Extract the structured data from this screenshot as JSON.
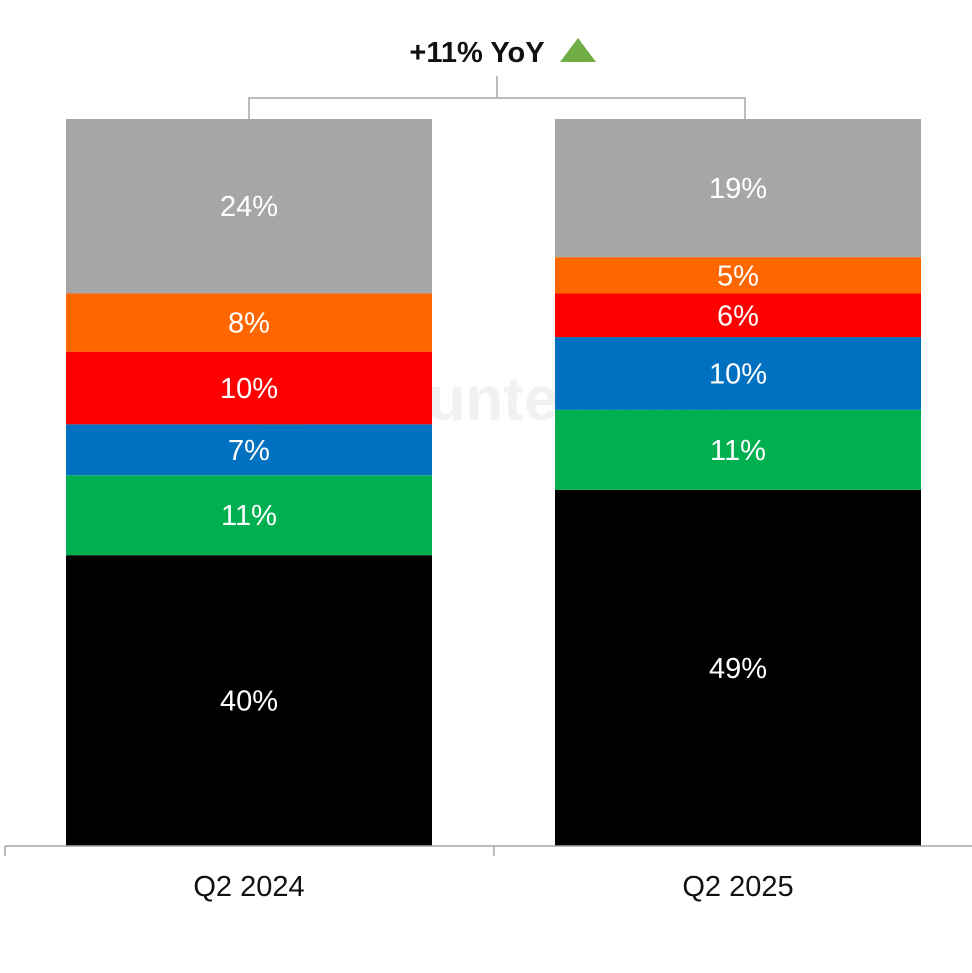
{
  "chart_data": {
    "type": "bar",
    "stacked": true,
    "normalized_percent": true,
    "categories": [
      "Q2 2024",
      "Q2 2025"
    ],
    "stack_order_bottom_to_top": [
      "black",
      "green",
      "blue",
      "red",
      "orange",
      "gray"
    ],
    "series": [
      {
        "color": "#000000",
        "values": [
          40,
          49
        ],
        "labels": [
          "40%",
          "49%"
        ]
      },
      {
        "color": "#00b050",
        "values": [
          11,
          11
        ],
        "labels": [
          "11%",
          "11%"
        ]
      },
      {
        "color": "#0070c0",
        "values": [
          7,
          10
        ],
        "labels": [
          "7%",
          "10%"
        ]
      },
      {
        "color": "#ff0000",
        "values": [
          10,
          6
        ],
        "labels": [
          "10%",
          "6%"
        ]
      },
      {
        "color": "#ff6600",
        "values": [
          8,
          5
        ],
        "labels": [
          "8%",
          "5%"
        ]
      },
      {
        "color": "#a6a6a6",
        "values": [
          24,
          19
        ],
        "labels": [
          "24%",
          "19%"
        ]
      }
    ],
    "ylim": [
      0,
      100
    ],
    "annotation": {
      "text": "+11% YoY",
      "arrow": "up",
      "arrow_color": "#70ad47"
    },
    "watermark": "Counterpoint",
    "grid": false,
    "legend": "none"
  }
}
